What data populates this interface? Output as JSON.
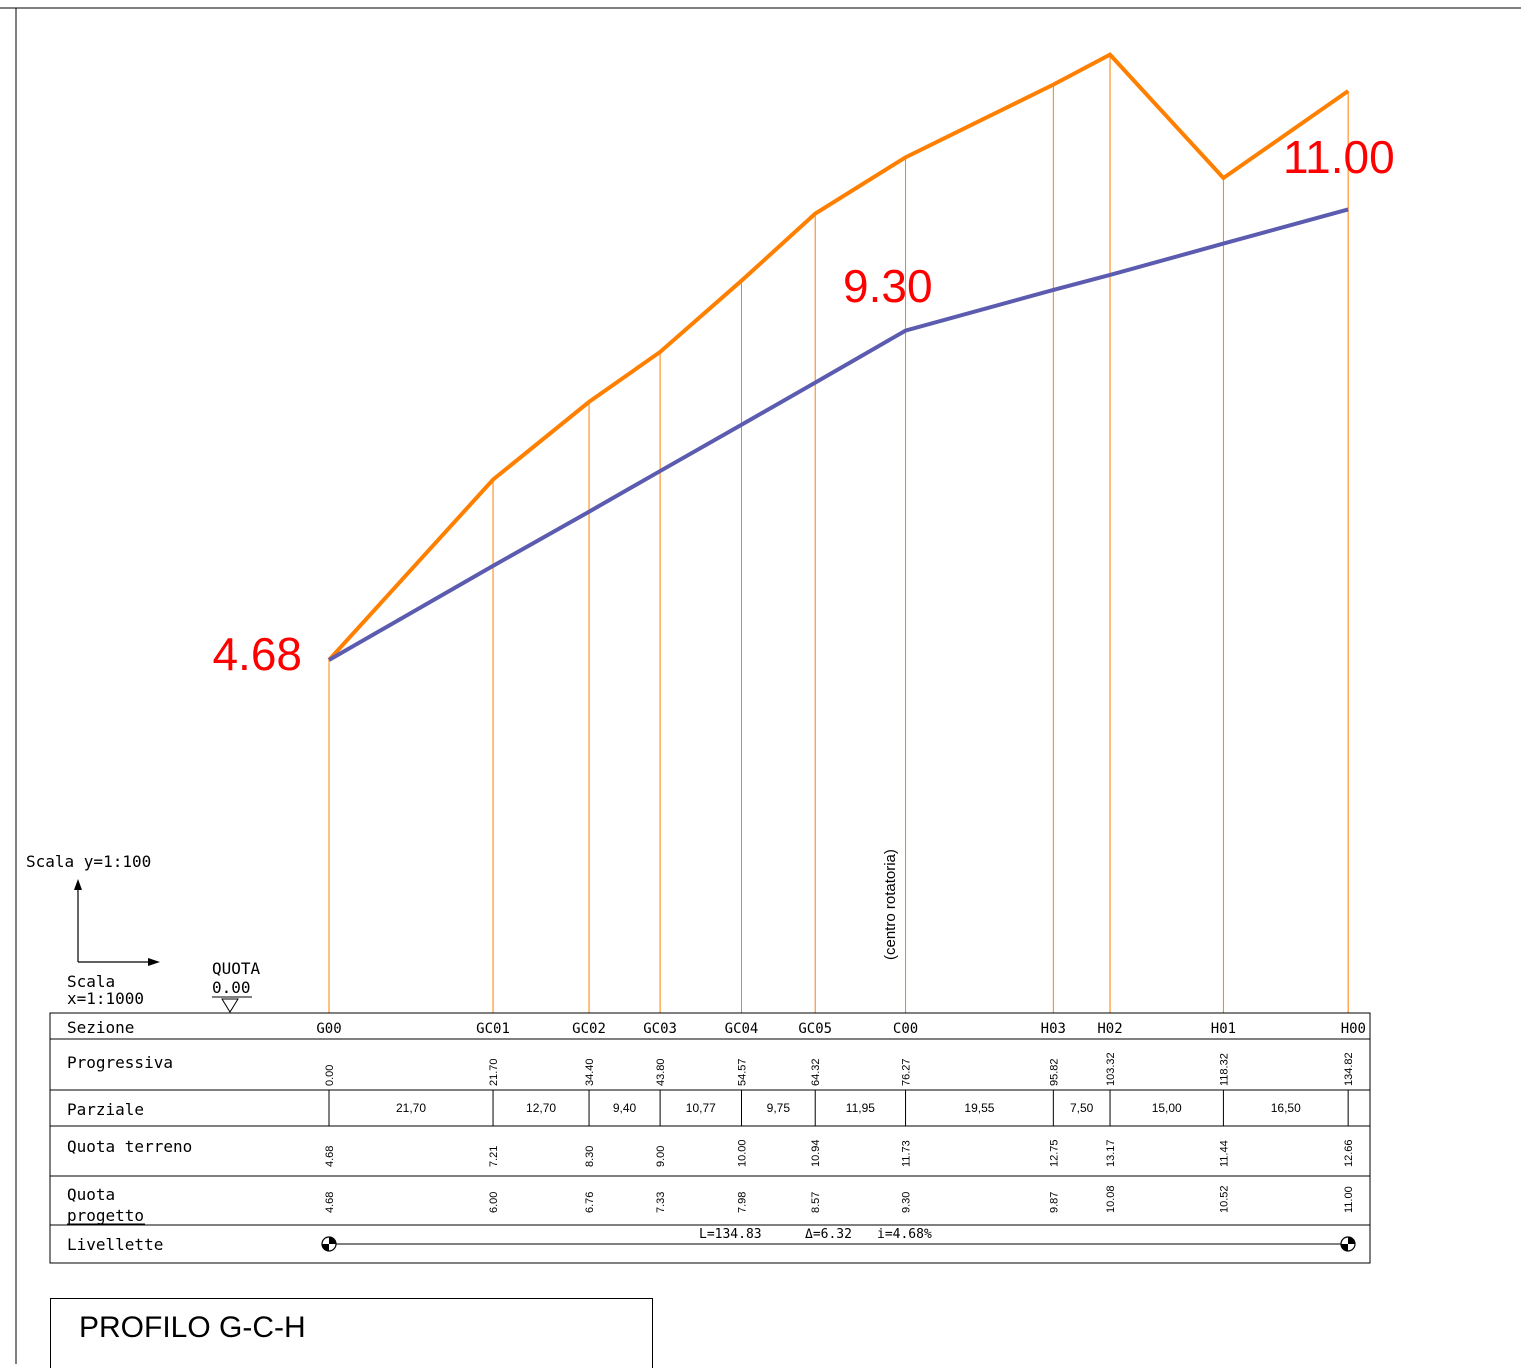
{
  "colors": {
    "terrain": "#ff8000",
    "project": "#5b5bb0",
    "guide": "#ff8000",
    "highlight": "#ff0000",
    "ink": "#000000"
  },
  "scale_y_label": "Scala  y=1:100",
  "scale_x_label_1": "Scala",
  "scale_x_label_2": "x=1:1000",
  "quota_label": "QUOTA",
  "quota_value": "0.00",
  "centro_label": "(centro rotatoria)",
  "highlight_labels": [
    "4.68",
    "9.30",
    "11.00"
  ],
  "table_rows": {
    "sezione": "Sezione",
    "progressiva": "Progressiva",
    "parziale": "Parziale",
    "quota_terreno": "Quota  terreno",
    "quota_progetto_1": "Quota",
    "quota_progetto_2": "progetto",
    "livellette": "Livellette"
  },
  "chart_data": {
    "type": "line",
    "series": [
      {
        "name": "Quota terreno",
        "values": [
          4.68,
          7.21,
          8.3,
          9.0,
          10.0,
          10.94,
          11.73,
          12.75,
          13.17,
          11.44,
          12.66
        ]
      },
      {
        "name": "Quota progetto",
        "values": [
          4.68,
          6.0,
          6.76,
          7.33,
          7.98,
          8.57,
          9.3,
          9.87,
          10.08,
          10.52,
          11.0
        ]
      }
    ],
    "sections": [
      "G00",
      "GC01",
      "GC02",
      "GC03",
      "GC04",
      "GC05",
      "C00",
      "H03",
      "H02",
      "H01",
      "H00"
    ],
    "progressive": [
      "0.00",
      "21.70",
      "34.40",
      "43.80",
      "54.57",
      "64.32",
      "76.27",
      "95.82",
      "103.32",
      "118.32",
      "134.82"
    ],
    "partials": [
      "21,70",
      "12,70",
      "9,40",
      "10,77",
      "9,75",
      "11,95",
      "19,55",
      "7,50",
      "15,00",
      "16,50"
    ],
    "terrain_labels": [
      "4.68",
      "7.21",
      "8.30",
      "9.00",
      "10.00",
      "10.94",
      "11.73",
      "12.75",
      "13.17",
      "11.44",
      "12.66"
    ],
    "project_labels": [
      "4.68",
      "6.00",
      "6.76",
      "7.33",
      "7.98",
      "8.57",
      "9.30",
      "9.87",
      "10.08",
      "10.52",
      "11.00"
    ],
    "livellette": {
      "length": "L=134.83",
      "delta": "Δ=6.32",
      "slope": "i=4.68%"
    }
  },
  "title": "PROFILO G-C-H"
}
